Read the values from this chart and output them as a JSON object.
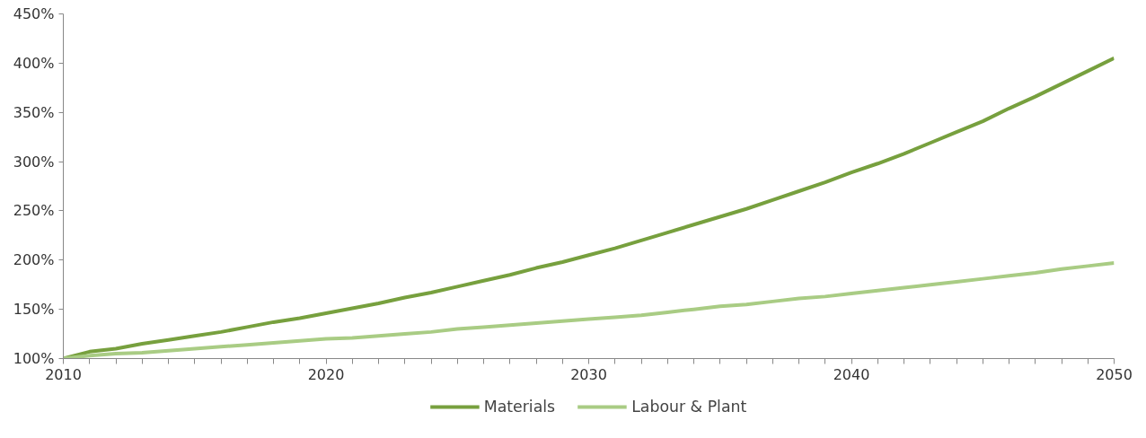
{
  "chart_data": {
    "type": "line",
    "x": [
      2010,
      2011,
      2012,
      2013,
      2014,
      2015,
      2016,
      2017,
      2018,
      2019,
      2020,
      2021,
      2022,
      2023,
      2024,
      2025,
      2026,
      2027,
      2028,
      2029,
      2030,
      2031,
      2032,
      2033,
      2034,
      2035,
      2036,
      2037,
      2038,
      2039,
      2040,
      2041,
      2042,
      2043,
      2044,
      2045,
      2046,
      2047,
      2048,
      2049,
      2050
    ],
    "series": [
      {
        "name": "Materials",
        "color": "#77a03e",
        "values": [
          100,
          107,
          110,
          115,
          119,
          123,
          127,
          132,
          137,
          141,
          146,
          151,
          156,
          162,
          167,
          173,
          179,
          185,
          192,
          198,
          205,
          212,
          220,
          228,
          236,
          244,
          252,
          261,
          270,
          279,
          289,
          298,
          308,
          319,
          330,
          341,
          354,
          366,
          379,
          392,
          405
        ]
      },
      {
        "name": "Labour & Plant",
        "color": "#a9cc84",
        "values": [
          100,
          103,
          105,
          106,
          108,
          110,
          112,
          114,
          116,
          118,
          120,
          121,
          123,
          125,
          127,
          130,
          132,
          134,
          136,
          138,
          140,
          142,
          144,
          147,
          150,
          153,
          155,
          158,
          161,
          163,
          166,
          169,
          172,
          175,
          178,
          181,
          184,
          187,
          191,
          194,
          197
        ]
      }
    ],
    "xlim": [
      2010,
      2050
    ],
    "xticks": [
      2010,
      {
        "value": 2011,
        "label": null
      },
      {
        "value": 2012,
        "label": null
      },
      {
        "value": 2013,
        "label": null
      },
      {
        "value": 2014,
        "label": null
      },
      {
        "value": 2015,
        "label": null
      },
      {
        "value": 2016,
        "label": null
      },
      {
        "value": 2017,
        "label": null
      },
      {
        "value": 2018,
        "label": null
      },
      {
        "value": 2019,
        "label": null
      },
      2020,
      {
        "value": 2021,
        "label": null
      },
      {
        "value": 2022,
        "label": null
      },
      {
        "value": 2023,
        "label": null
      },
      {
        "value": 2024,
        "label": null
      },
      {
        "value": 2025,
        "label": null
      },
      {
        "value": 2026,
        "label": null
      },
      {
        "value": 2027,
        "label": null
      },
      {
        "value": 2028,
        "label": null
      },
      {
        "value": 2029,
        "label": null
      },
      2030,
      {
        "value": 2031,
        "label": null
      },
      {
        "value": 2032,
        "label": null
      },
      {
        "value": 2033,
        "label": null
      },
      {
        "value": 2034,
        "label": null
      },
      {
        "value": 2035,
        "label": null
      },
      {
        "value": 2036,
        "label": null
      },
      {
        "value": 2037,
        "label": null
      },
      {
        "value": 2038,
        "label": null
      },
      {
        "value": 2039,
        "label": null
      },
      2040,
      {
        "value": 2041,
        "label": null
      },
      {
        "value": 2042,
        "label": null
      },
      {
        "value": 2043,
        "label": null
      },
      {
        "value": 2044,
        "label": null
      },
      {
        "value": 2045,
        "label": null
      },
      {
        "value": 2046,
        "label": null
      },
      {
        "value": 2047,
        "label": null
      },
      {
        "value": 2048,
        "label": null
      },
      {
        "value": 2049,
        "label": null
      },
      2050
    ],
    "ylim": [
      100,
      450
    ],
    "yticks": [
      {
        "value": 100,
        "label": "100%"
      },
      {
        "value": 150,
        "label": "150%"
      },
      {
        "value": 200,
        "label": "200%"
      },
      {
        "value": 250,
        "label": "250%"
      },
      {
        "value": 300,
        "label": "300%"
      },
      {
        "value": 350,
        "label": "350%"
      },
      {
        "value": 400,
        "label": "400%"
      },
      {
        "value": 450,
        "label": "450%"
      }
    ],
    "grid": false,
    "legend": "bottom",
    "marker": "none",
    "line_style": "solid"
  }
}
